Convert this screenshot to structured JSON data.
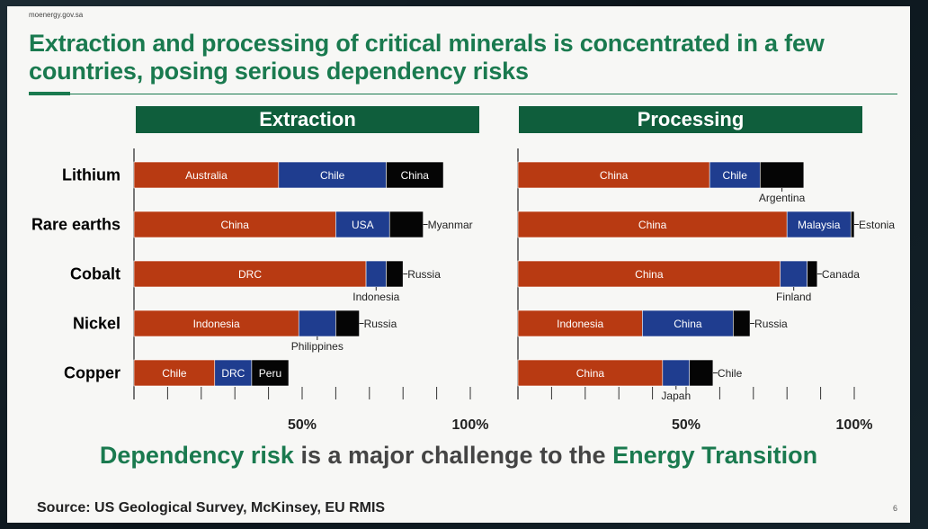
{
  "site": "moenergy.gov.sa",
  "title": "Extraction and processing of critical minerals is concentrated in a few countries, posing serious dependency risks",
  "page_number": "6",
  "banner": {
    "part1": "Dependency risk",
    "part2": " is a major challenge to the ",
    "part3": "Energy Transition"
  },
  "source": "Source: US Geological Survey, McKinsey, EU RMIS",
  "colors": {
    "red": "#b83a12",
    "blue": "#1f3d8f",
    "black": "#050505",
    "green_header": "#0f5e3c",
    "green_text": "#1a7a4f"
  },
  "chart_data": [
    {
      "type": "bar",
      "stacked": true,
      "orientation": "horizontal",
      "title": "Extraction",
      "categories": [
        "Lithium",
        "Rare earths",
        "Cobalt",
        "Nickel",
        "Copper"
      ],
      "xticks": [
        "50%",
        "100%"
      ],
      "xlim": [
        0,
        100
      ],
      "rows": [
        {
          "mineral": "Lithium",
          "segments": [
            {
              "country": "Australia",
              "value": 43,
              "color": "red",
              "label": "inside"
            },
            {
              "country": "Chile",
              "value": 32,
              "color": "blue",
              "label": "inside"
            },
            {
              "country": "China",
              "value": 17,
              "color": "black",
              "label": "inside"
            }
          ]
        },
        {
          "mineral": "Rare earths",
          "segments": [
            {
              "country": "China",
              "value": 60,
              "color": "red",
              "label": "inside"
            },
            {
              "country": "USA",
              "value": 16,
              "color": "blue",
              "label": "inside"
            },
            {
              "country": "Myanmar",
              "value": 10,
              "color": "black",
              "label": "right"
            }
          ]
        },
        {
          "mineral": "Cobalt",
          "segments": [
            {
              "country": "DRC",
              "value": 69,
              "color": "red",
              "label": "inside"
            },
            {
              "country": "Indonesia",
              "value": 6,
              "color": "blue",
              "label": "below"
            },
            {
              "country": "Russia",
              "value": 5,
              "color": "black",
              "label": "right"
            }
          ]
        },
        {
          "mineral": "Nickel",
          "segments": [
            {
              "country": "Indonesia",
              "value": 49,
              "color": "red",
              "label": "inside"
            },
            {
              "country": "Philippines",
              "value": 11,
              "color": "blue",
              "label": "below"
            },
            {
              "country": "Russia",
              "value": 7,
              "color": "black",
              "label": "right"
            }
          ]
        },
        {
          "mineral": "Copper",
          "segments": [
            {
              "country": "Chile",
              "value": 24,
              "color": "red",
              "label": "inside"
            },
            {
              "country": "DRC",
              "value": 11,
              "color": "blue",
              "label": "inside"
            },
            {
              "country": "Peru",
              "value": 11,
              "color": "black",
              "label": "inside"
            }
          ]
        }
      ]
    },
    {
      "type": "bar",
      "stacked": true,
      "orientation": "horizontal",
      "title": "Processing",
      "categories": [
        "Lithium",
        "Rare earths",
        "Cobalt",
        "Nickel",
        "Copper"
      ],
      "xticks": [
        "50%",
        "100%"
      ],
      "xlim": [
        0,
        100
      ],
      "rows": [
        {
          "mineral": "Lithium",
          "segments": [
            {
              "country": "China",
              "value": 57,
              "color": "red",
              "label": "inside"
            },
            {
              "country": "Chile",
              "value": 15,
              "color": "blue",
              "label": "inside"
            },
            {
              "country": "Argentina",
              "value": 13,
              "color": "black",
              "label": "below"
            }
          ]
        },
        {
          "mineral": "Rare earths",
          "segments": [
            {
              "country": "China",
              "value": 80,
              "color": "red",
              "label": "inside"
            },
            {
              "country": "Malaysia",
              "value": 19,
              "color": "blue",
              "label": "inside"
            },
            {
              "country": "Estonia",
              "value": 1,
              "color": "black",
              "label": "right"
            }
          ]
        },
        {
          "mineral": "Cobalt",
          "segments": [
            {
              "country": "China",
              "value": 78,
              "color": "red",
              "label": "inside"
            },
            {
              "country": "Finland",
              "value": 8,
              "color": "blue",
              "label": "below"
            },
            {
              "country": "Canada",
              "value": 3,
              "color": "black",
              "label": "right"
            }
          ]
        },
        {
          "mineral": "Nickel",
          "segments": [
            {
              "country": "Indonesia",
              "value": 37,
              "color": "red",
              "label": "inside"
            },
            {
              "country": "China",
              "value": 27,
              "color": "blue",
              "label": "inside"
            },
            {
              "country": "Russia",
              "value": 5,
              "color": "black",
              "label": "right"
            }
          ]
        },
        {
          "mineral": "Copper",
          "segments": [
            {
              "country": "China",
              "value": 43,
              "color": "red",
              "label": "inside"
            },
            {
              "country": "Japan",
              "value": 8,
              "color": "blue",
              "label": "below"
            },
            {
              "country": "Chile",
              "value": 7,
              "color": "black",
              "label": "right"
            }
          ]
        }
      ]
    }
  ]
}
